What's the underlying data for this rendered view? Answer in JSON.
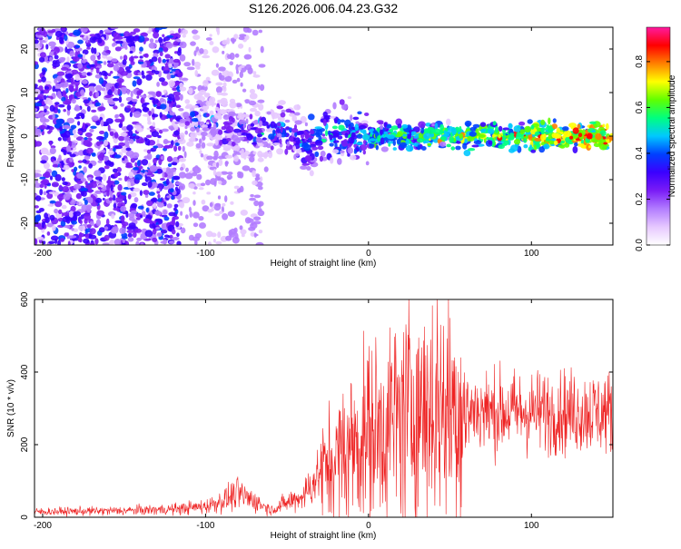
{
  "title": "S126.2026.006.04.23.G32",
  "colors": {
    "snr_line": "#ee2222",
    "axis": "#000000",
    "background": "#ffffff"
  },
  "colormap": [
    "#ffffff",
    "#e6c8ff",
    "#b27cff",
    "#7a1cf6",
    "#3b00ff",
    "#0040ff",
    "#00c8ff",
    "#00ff80",
    "#60ff00",
    "#ffff00",
    "#ff8000",
    "#ff0000",
    "#ff1aa0"
  ],
  "chart_data": [
    {
      "type": "heatmap",
      "title": "S126.2026.006.04.23.G32",
      "xlabel": "Height of straight line (km)",
      "ylabel": "Frequency (Hz)",
      "xlim": [
        -205,
        150
      ],
      "ylim": [
        -25,
        25
      ],
      "xticks": [
        -200,
        -100,
        0,
        100
      ],
      "yticks": [
        -20,
        -10,
        0,
        10,
        20
      ],
      "ridge": [
        [
          -110,
          5
        ],
        [
          -90,
          3
        ],
        [
          -75,
          1
        ],
        [
          -60,
          0
        ],
        [
          -50,
          2
        ],
        [
          -40,
          -2
        ],
        [
          -30,
          0
        ],
        [
          -20,
          1
        ],
        [
          0,
          0
        ],
        [
          50,
          0
        ],
        [
          100,
          0
        ],
        [
          150,
          0
        ]
      ],
      "colorbar": {
        "label": "Normalized spectral amplitude",
        "range": [
          0.0,
          0.95
        ],
        "ticks": [
          0.0,
          0.2,
          0.4,
          0.6,
          0.8
        ]
      }
    },
    {
      "type": "line",
      "xlabel": "Height of straight line (km)",
      "ylabel": "SNR (10 * v/v)",
      "xlim": [
        -205,
        150
      ],
      "ylim": [
        0,
        600
      ],
      "xticks": [
        -200,
        -100,
        0,
        100
      ],
      "yticks": [
        0,
        200,
        400,
        600
      ],
      "series": [
        {
          "name": "SNR",
          "envelope": [
            [
              -205,
              15
            ],
            [
              -150,
              18
            ],
            [
              -120,
              22
            ],
            [
              -100,
              30
            ],
            [
              -90,
              45
            ],
            [
              -80,
              65
            ],
            [
              -70,
              45
            ],
            [
              -60,
              20
            ],
            [
              -50,
              40
            ],
            [
              -40,
              60
            ],
            [
              -30,
              120
            ],
            [
              -20,
              160
            ],
            [
              -10,
              200
            ],
            [
              0,
              230
            ],
            [
              10,
              250
            ],
            [
              20,
              280
            ],
            [
              30,
              300
            ],
            [
              40,
              310
            ],
            [
              50,
              300
            ],
            [
              60,
              295
            ],
            [
              80,
              290
            ],
            [
              100,
              290
            ],
            [
              120,
              290
            ],
            [
              150,
              290
            ]
          ]
        }
      ]
    }
  ]
}
